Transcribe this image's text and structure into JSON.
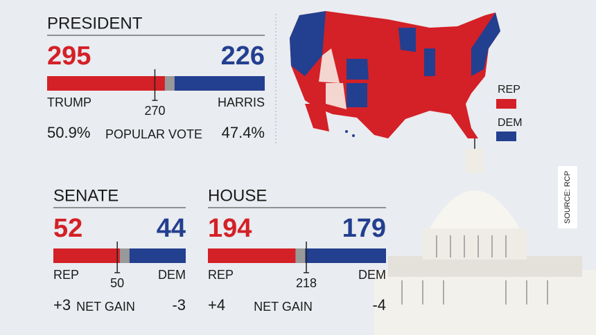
{
  "president": {
    "title": "PRESIDENT",
    "rep": {
      "seats": 295,
      "label": "TRUMP",
      "popular_vote": "50.9%"
    },
    "dem": {
      "seats": 226,
      "label": "HARRIS",
      "popular_vote": "47.4%"
    },
    "threshold": 270,
    "caption": "POPULAR VOTE"
  },
  "senate": {
    "title": "SENATE",
    "rep": {
      "seats": 52,
      "label": "REP",
      "net_gain": "+3"
    },
    "dem": {
      "seats": 44,
      "label": "DEM",
      "net_gain": "-3"
    },
    "threshold": 50,
    "caption": "NET GAIN"
  },
  "house": {
    "title": "HOUSE",
    "rep": {
      "seats": 194,
      "label": "REP",
      "net_gain": "+4"
    },
    "dem": {
      "seats": 179,
      "label": "DEM",
      "net_gain": "-4"
    },
    "threshold": 218,
    "caption": "NET GAIN"
  },
  "legend": {
    "rep": "REP",
    "dem": "DEM"
  },
  "source": "SOURCE: RCP",
  "colors": {
    "rep": "#d42027",
    "dem": "#233f8f",
    "other": "#999999"
  }
}
